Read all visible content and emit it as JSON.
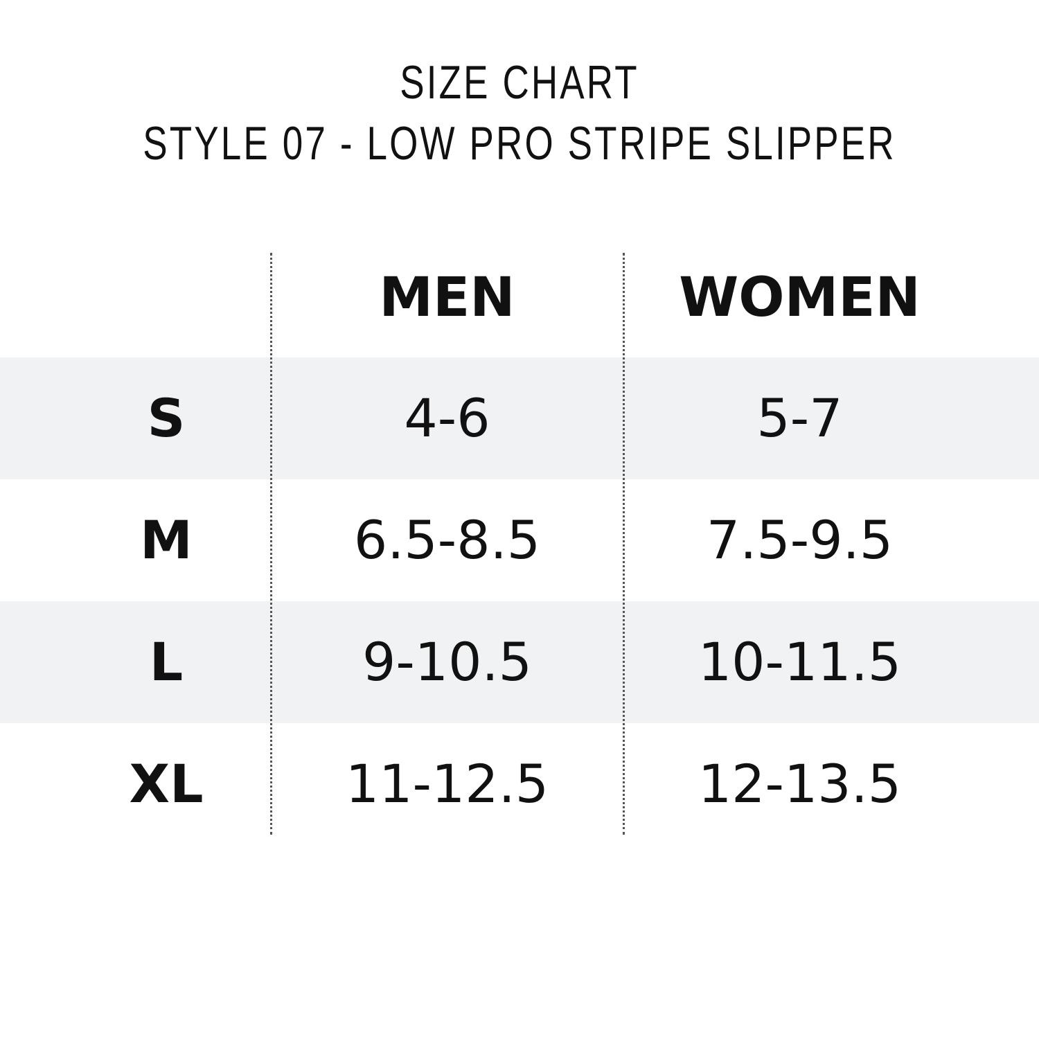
{
  "header": {
    "title": "SIZE CHART",
    "subtitle": "STYLE 07 - LOW PRO STRIPE SLIPPER"
  },
  "table": {
    "columns": [
      "MEN",
      "WOMEN"
    ],
    "rows": [
      [
        "S",
        "4-6",
        "5-7"
      ],
      [
        "M",
        "6.5-8.5",
        "7.5-9.5"
      ],
      [
        "L",
        "9-10.5",
        "10-11.5"
      ],
      [
        "XL",
        "11-12.5",
        "12-13.5"
      ]
    ]
  }
}
